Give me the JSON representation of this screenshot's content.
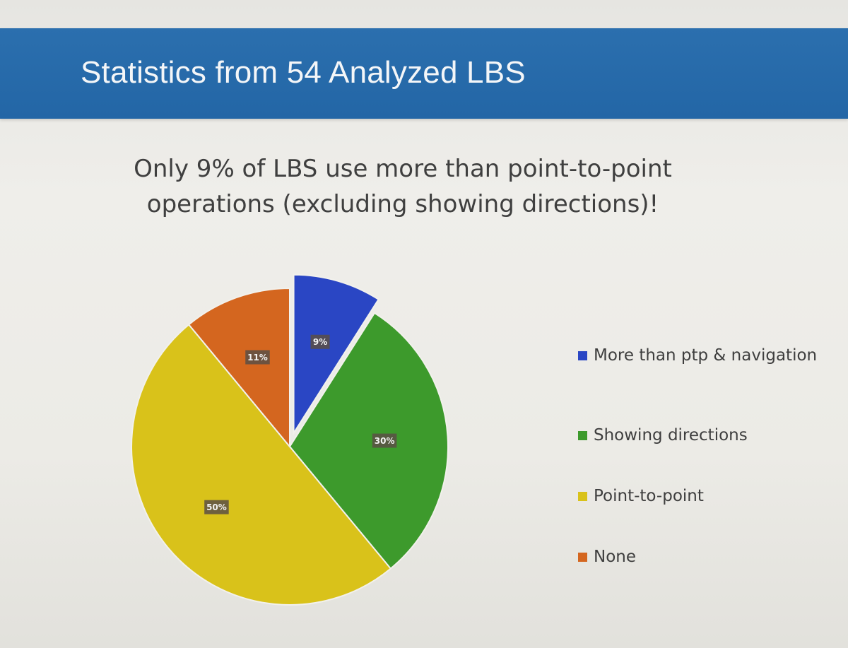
{
  "header": {
    "title": "Statistics from 54 Analyzed LBS"
  },
  "subtitle_lines": [
    "Only 9% of LBS use more than point-to-point",
    "operations (excluding showing directions)!"
  ],
  "chart_data": {
    "type": "pie",
    "title": "",
    "categories": [
      "More than ptp & navigation",
      "Showing directions",
      "Point-to-point",
      "None"
    ],
    "values": [
      9,
      30,
      50,
      11
    ],
    "data_labels": [
      "9%",
      "30%",
      "50%",
      "11%"
    ],
    "colors": [
      "#2a46c4",
      "#3d9a2c",
      "#d9c21a",
      "#d4661f"
    ],
    "exploded": [
      true,
      false,
      false,
      false
    ],
    "start_angle_deg": 0,
    "direction": "clockwise",
    "legend_position": "right"
  }
}
